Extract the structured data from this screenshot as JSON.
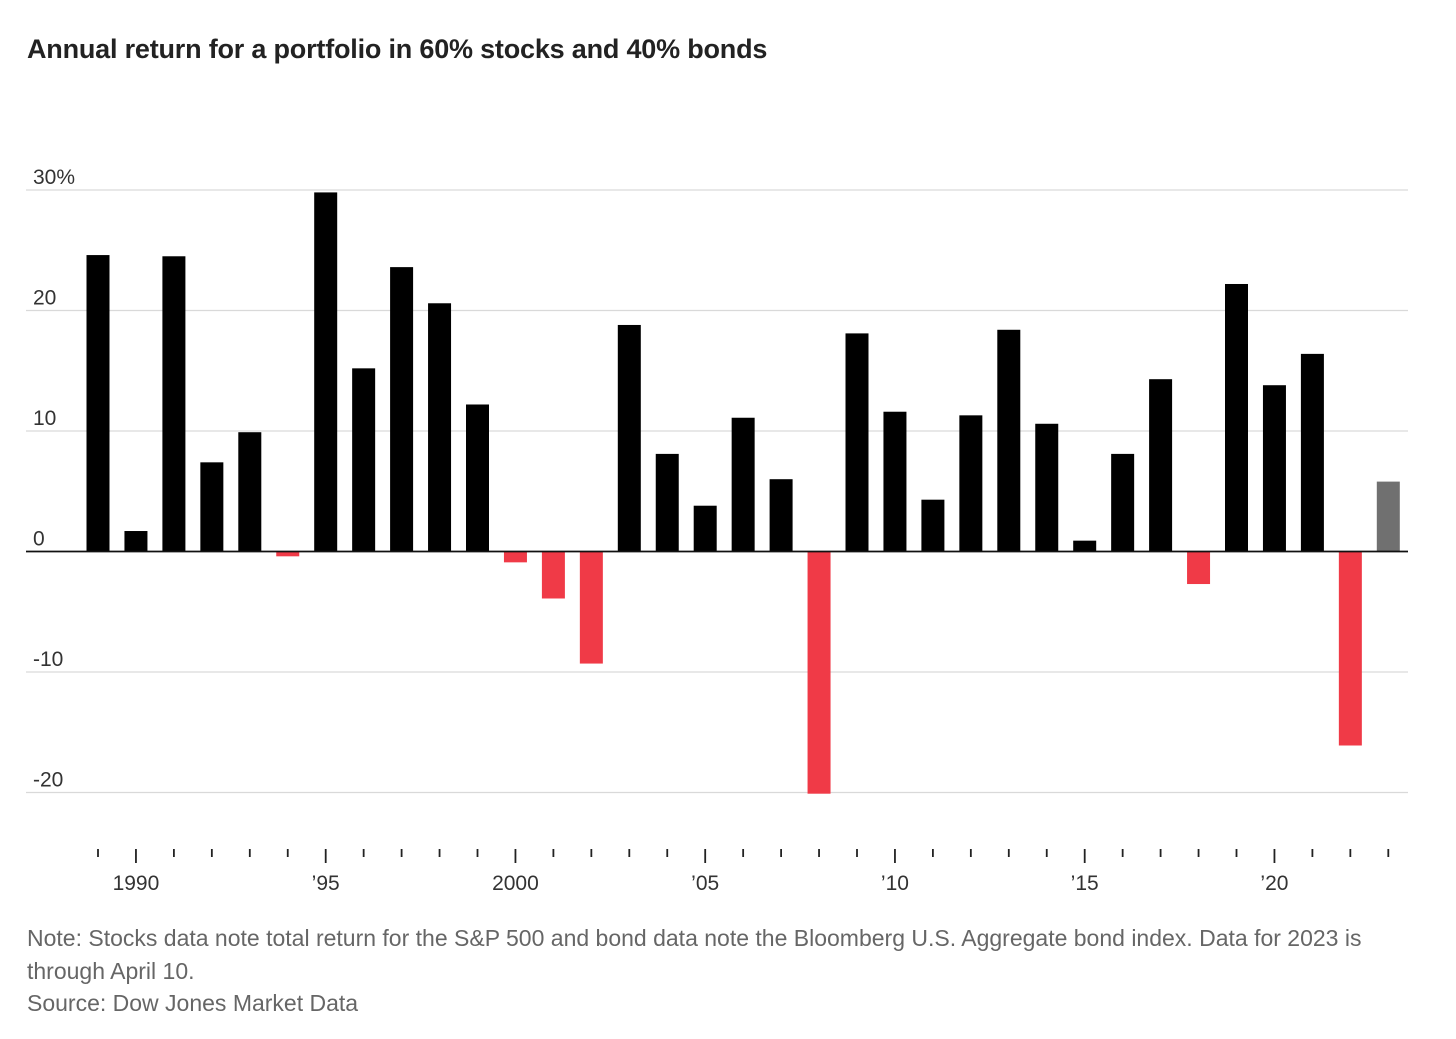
{
  "chart_data": {
    "type": "bar",
    "title": "Annual return for a portfolio in 60% stocks and 40% bonds",
    "categories": [
      "1989",
      "1990",
      "1991",
      "1992",
      "1993",
      "1994",
      "1995",
      "1996",
      "1997",
      "1998",
      "1999",
      "2000",
      "2001",
      "2002",
      "2003",
      "2004",
      "2005",
      "2006",
      "2007",
      "2008",
      "2009",
      "2010",
      "2011",
      "2012",
      "2013",
      "2014",
      "2015",
      "2016",
      "2017",
      "2018",
      "2019",
      "2020",
      "2021",
      "2022",
      "2023"
    ],
    "values": [
      24.6,
      1.7,
      24.5,
      7.4,
      9.9,
      -0.4,
      29.8,
      15.2,
      23.6,
      20.6,
      12.2,
      -0.9,
      -3.9,
      -9.3,
      18.8,
      8.1,
      3.8,
      11.1,
      6.0,
      -20.1,
      18.1,
      11.6,
      4.3,
      11.3,
      18.4,
      10.6,
      0.9,
      8.1,
      14.3,
      -2.7,
      22.2,
      13.8,
      16.4,
      -16.1,
      5.8
    ],
    "ylim": [
      -20,
      30
    ],
    "yticks": [
      {
        "value": 30,
        "label": "30%"
      },
      {
        "value": 20,
        "label": "20"
      },
      {
        "value": 10,
        "label": "10"
      },
      {
        "value": 0,
        "label": "0"
      },
      {
        "value": -10,
        "label": "-10"
      },
      {
        "value": -20,
        "label": "-20"
      }
    ],
    "xticks": [
      {
        "year": 1990,
        "label": "1990"
      },
      {
        "year": 1995,
        "label": "’95"
      },
      {
        "year": 2000,
        "label": "2000"
      },
      {
        "year": 2005,
        "label": "’05"
      },
      {
        "year": 2010,
        "label": "’10"
      },
      {
        "year": 2015,
        "label": "’15"
      },
      {
        "year": 2020,
        "label": "’20"
      }
    ],
    "grid": true,
    "colors": {
      "positive": "#000000",
      "negative": "#f03a47",
      "partial_year": "#707070",
      "grid": "#d9d9d9"
    },
    "partial_year": "2023"
  },
  "note": "Note: Stocks data note total return for the S&P 500 and bond data note the Bloomberg U.S. Aggregate bond index. Data for 2023 is through April 10.",
  "source": "Source: Dow Jones Market Data"
}
